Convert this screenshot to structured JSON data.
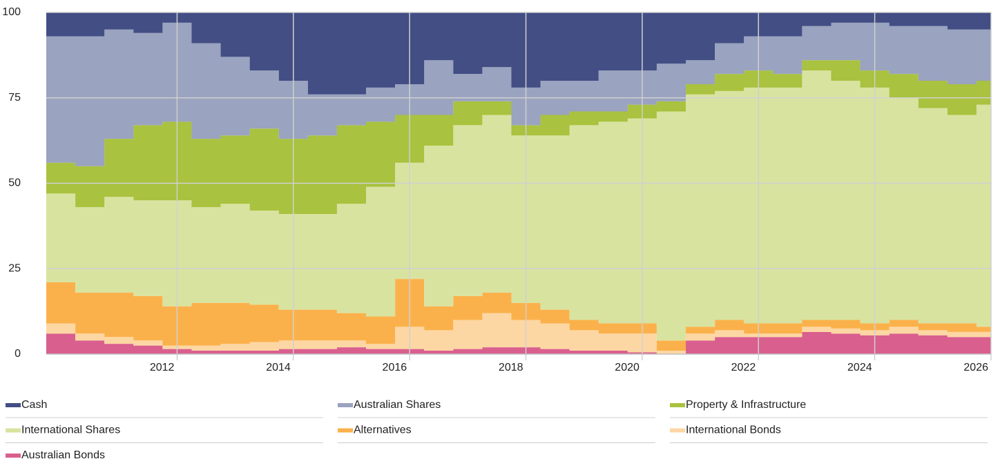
{
  "chart_data": {
    "type": "stacked-area-step",
    "x": [
      2009.75,
      2010.25,
      2010.75,
      2011.25,
      2011.75,
      2012.25,
      2012.75,
      2013.25,
      2013.75,
      2014.25,
      2014.75,
      2015.25,
      2015.75,
      2016.25,
      2016.75,
      2017.25,
      2017.75,
      2018.25,
      2018.75,
      2019.25,
      2019.75,
      2020.25,
      2020.75,
      2021.25,
      2021.75,
      2022.25,
      2022.75,
      2023.25,
      2023.75,
      2024.25,
      2024.75,
      2025.25,
      2025.75
    ],
    "xlim": [
      2009.75,
      2026
    ],
    "xticks": [
      2012,
      2014,
      2016,
      2018,
      2020,
      2022,
      2024,
      2026
    ],
    "ylim": [
      0,
      100
    ],
    "yticks": [
      0,
      25,
      50,
      75,
      100
    ],
    "grid": true,
    "series": [
      {
        "name": "Australian Bonds",
        "color": "#d95f8e",
        "values": [
          6,
          4,
          3,
          2.5,
          1.5,
          1,
          1,
          1,
          1.5,
          1.5,
          2,
          1.5,
          1.5,
          1,
          1.5,
          2,
          2,
          1.5,
          1,
          1,
          0.5,
          0,
          4,
          5,
          5,
          5,
          6.5,
          6,
          5.5,
          6,
          5.5,
          5,
          5
        ]
      },
      {
        "name": "International Bonds",
        "color": "#fdd7a3",
        "values": [
          3,
          2,
          2,
          1.5,
          1,
          1.5,
          2,
          2.5,
          2.5,
          2.5,
          2,
          1.5,
          6.5,
          6,
          8.5,
          10,
          8,
          7.5,
          6,
          5,
          5.5,
          1,
          2,
          2,
          1,
          1,
          1.5,
          1.5,
          1.5,
          2,
          1.5,
          1.5,
          1.5
        ]
      },
      {
        "name": "Alternatives",
        "color": "#fbb14b",
        "values": [
          12,
          12,
          13,
          13,
          11.5,
          12.5,
          12,
          11,
          9,
          9,
          8,
          8,
          14,
          7,
          7,
          6,
          5,
          4,
          3,
          3,
          3,
          3,
          2,
          3,
          3,
          3,
          2,
          2.5,
          2,
          2,
          2,
          2.5,
          1.5
        ]
      },
      {
        "name": "International Shares",
        "color": "#d9e3a0",
        "values": [
          26,
          25,
          28,
          28,
          31,
          28,
          29,
          27.5,
          28,
          28,
          32,
          38,
          34,
          47,
          50,
          52,
          49,
          51,
          57,
          59,
          60,
          67,
          68,
          67,
          69,
          69,
          73,
          70,
          69,
          65,
          63,
          61,
          65
        ]
      },
      {
        "name": "Property & Infrastructure",
        "color": "#a9c23f",
        "values": [
          9,
          12,
          17,
          22,
          23,
          20,
          20,
          24,
          22,
          23,
          23,
          19,
          14,
          9,
          7,
          4,
          3,
          6,
          4,
          3,
          4,
          3,
          3,
          5,
          5,
          4,
          3,
          6,
          5,
          7,
          8,
          9,
          7
        ]
      },
      {
        "name": "Australian Shares",
        "color": "#9aa3bf",
        "values": [
          37,
          38,
          32,
          27,
          29,
          28,
          23,
          17,
          17,
          12,
          9,
          10,
          9,
          16,
          8,
          10,
          11,
          10,
          9,
          12,
          10,
          11,
          7,
          9,
          10,
          11,
          10,
          11,
          14,
          14,
          16,
          16,
          15
        ]
      },
      {
        "name": "Cash",
        "color": "#424e84",
        "values": [
          7,
          7,
          5,
          6,
          3,
          9,
          13,
          17,
          20,
          24,
          24,
          22,
          21,
          14,
          18,
          16,
          22,
          20,
          20,
          17,
          17,
          15,
          14,
          9,
          7,
          7,
          4,
          3,
          3,
          4,
          4,
          5,
          5
        ]
      }
    ],
    "legend_order": [
      6,
      5,
      4,
      3,
      2,
      1,
      0
    ]
  }
}
